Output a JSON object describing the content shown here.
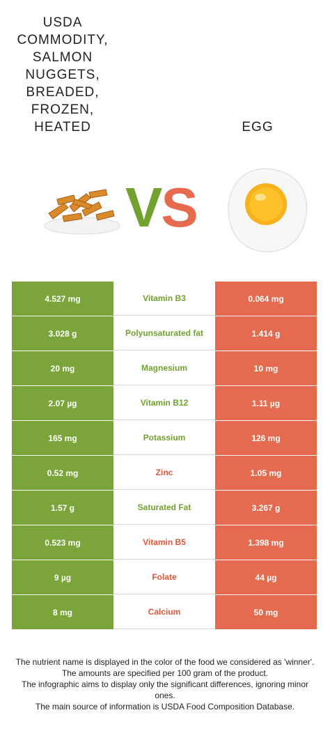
{
  "left_food": {
    "title": "USDA\nCOMMODITY,\nSALMON\nNUGGETS,\nBREADED,\nFROZEN,\nHEATED",
    "color": "#7ba43a"
  },
  "right_food": {
    "title": "EGG",
    "color": "#e46b4f"
  },
  "vs": {
    "v": "V",
    "s": "S"
  },
  "rows": [
    {
      "left": "4.527 mg",
      "nutrient": "Vitamin B3",
      "right": "0.064 mg",
      "winner": "left"
    },
    {
      "left": "3.028 g",
      "nutrient": "Polyunsaturated fat",
      "right": "1.414 g",
      "winner": "left"
    },
    {
      "left": "20 mg",
      "nutrient": "Magnesium",
      "right": "10 mg",
      "winner": "left"
    },
    {
      "left": "2.07 µg",
      "nutrient": "Vitamin B12",
      "right": "1.11 µg",
      "winner": "left"
    },
    {
      "left": "165 mg",
      "nutrient": "Potassium",
      "right": "126 mg",
      "winner": "left"
    },
    {
      "left": "0.52 mg",
      "nutrient": "Zinc",
      "right": "1.05 mg",
      "winner": "right"
    },
    {
      "left": "1.57 g",
      "nutrient": "Saturated Fat",
      "right": "3.267 g",
      "winner": "left"
    },
    {
      "left": "0.523 mg",
      "nutrient": "Vitamin B5",
      "right": "1.398 mg",
      "winner": "right"
    },
    {
      "left": "9 µg",
      "nutrient": "Folate",
      "right": "44 µg",
      "winner": "right"
    },
    {
      "left": "8 mg",
      "nutrient": "Calcium",
      "right": "50 mg",
      "winner": "right"
    }
  ],
  "footnotes": [
    "The nutrient name is displayed in the color of the food we considered as 'winner'.",
    "The amounts are specified per 100 gram of the product.",
    "The infographic aims to display only the significant differences, ignoring minor ones.",
    "The main source of information is USDA Food Composition Database."
  ]
}
